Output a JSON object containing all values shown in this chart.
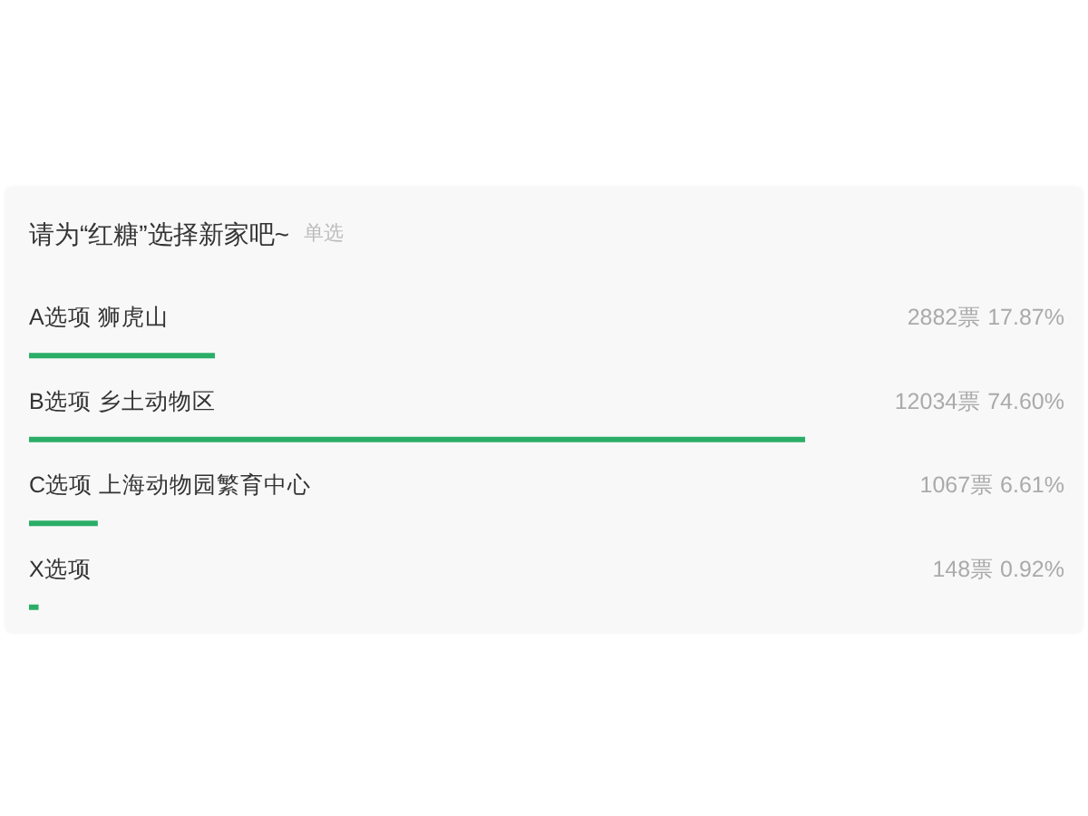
{
  "chart_data": {
    "type": "bar",
    "orientation": "horizontal",
    "title": "请为“红糖”选择新家吧~",
    "subtitle": "单选",
    "categories": [
      "A选项 狮虎山",
      "B选项 乡土动物区",
      "C选项 上海动物园繁育中心",
      "X选项"
    ],
    "values": [
      17.87,
      74.6,
      6.61,
      0.92
    ],
    "value_labels": [
      "2882票 17.87%",
      "12034票 74.60%",
      "1067票 6.61%",
      "148票 0.92%"
    ],
    "color": "#2aae67",
    "tick_labels": "y"
  }
}
